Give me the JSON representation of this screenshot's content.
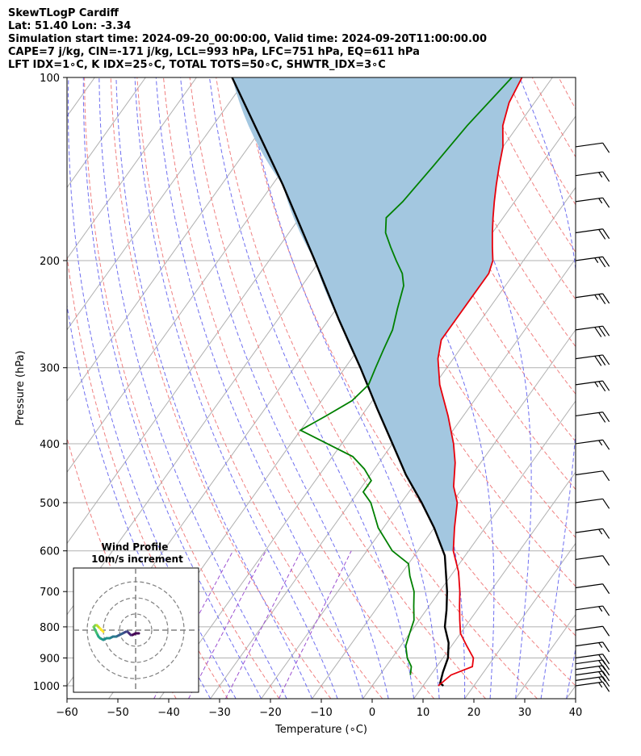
{
  "header": {
    "title": "SkewTLogP Cardiff",
    "location": "Lat: 51.40   Lon: -3.34",
    "times": "Simulation start time: 2024-09-20_00:00:00, Valid time: 2024-09-20T11:00:00.00",
    "params1": "CAPE=7 j/kg, CIN=-171 j/kg, LCL=993 hPa, LFC=751 hPa, EQ=611 hPa",
    "params2": "LFT IDX=1∘C, K IDX=25∘C, TOTAL TOTS=50∘C, SHWTR_IDX=3∘C"
  },
  "colors": {
    "temperature": "#e8000b",
    "dewpoint": "#008000",
    "parcel": "#000000",
    "cape_fill": "#a3c7e0",
    "dry_adiabat": "#f08080",
    "moist_adiabat": "#6f6ff0",
    "mixing_ratio": "#9b4fd0",
    "isotherm": "#b0b0b0",
    "isobar": "#b0b0b0"
  },
  "chart_data": {
    "type": "line",
    "chart_kind": "skew-t log-p",
    "xlabel": "Temperature (∘C)",
    "ylabel": "Pressure (hPa)",
    "xlim": [
      -60,
      40
    ],
    "ylim": [
      1050,
      100
    ],
    "yscale": "log",
    "grid": true,
    "x_ticks": [
      -60,
      -50,
      -40,
      -30,
      -20,
      -10,
      0,
      10,
      20,
      30,
      40
    ],
    "x_tick_labels": [
      "−60",
      "−50",
      "−40",
      "−30",
      "−20",
      "−10",
      "0",
      "10",
      "20",
      "30",
      "40"
    ],
    "y_ticks": [
      1000,
      900,
      800,
      700,
      600,
      500,
      400,
      300,
      200,
      100
    ],
    "series": [
      {
        "key": "temperature",
        "points": [
          [
            1000,
            13
          ],
          [
            960,
            14
          ],
          [
            930,
            17
          ],
          [
            900,
            16
          ],
          [
            860,
            13
          ],
          [
            820,
            10
          ],
          [
            780,
            8
          ],
          [
            740,
            6
          ],
          [
            700,
            4
          ],
          [
            650,
            1
          ],
          [
            600,
            -3
          ],
          [
            550,
            -6
          ],
          [
            500,
            -9
          ],
          [
            470,
            -12
          ],
          [
            430,
            -15
          ],
          [
            400,
            -18
          ],
          [
            360,
            -23
          ],
          [
            320,
            -29
          ],
          [
            290,
            -33
          ],
          [
            270,
            -35
          ],
          [
            250,
            -35
          ],
          [
            230,
            -35
          ],
          [
            210,
            -35
          ],
          [
            200,
            -36
          ],
          [
            190,
            -38
          ],
          [
            180,
            -40
          ],
          [
            170,
            -42
          ],
          [
            160,
            -44
          ],
          [
            150,
            -46
          ],
          [
            140,
            -48
          ],
          [
            130,
            -50
          ],
          [
            120,
            -53
          ],
          [
            110,
            -55
          ],
          [
            100,
            -56
          ]
        ]
      },
      {
        "key": "dewpoint",
        "points": [
          [
            960,
            6
          ],
          [
            930,
            5
          ],
          [
            900,
            3
          ],
          [
            860,
            1
          ],
          [
            820,
            0
          ],
          [
            780,
            -1
          ],
          [
            740,
            -3
          ],
          [
            700,
            -5
          ],
          [
            660,
            -8
          ],
          [
            630,
            -10
          ],
          [
            600,
            -15
          ],
          [
            550,
            -21
          ],
          [
            500,
            -26
          ],
          [
            480,
            -29
          ],
          [
            460,
            -29
          ],
          [
            440,
            -32
          ],
          [
            420,
            -36
          ],
          [
            380,
            -50
          ],
          [
            360,
            -47
          ],
          [
            340,
            -44
          ],
          [
            320,
            -43
          ],
          [
            300,
            -44
          ],
          [
            280,
            -45
          ],
          [
            260,
            -46
          ],
          [
            240,
            -48
          ],
          [
            220,
            -50
          ],
          [
            210,
            -52
          ],
          [
            200,
            -55
          ],
          [
            190,
            -58
          ],
          [
            180,
            -61
          ],
          [
            170,
            -63
          ],
          [
            160,
            -62
          ],
          [
            140,
            -61
          ],
          [
            120,
            -60
          ],
          [
            100,
            -58
          ]
        ]
      },
      {
        "key": "parcel",
        "points": [
          [
            1000,
            14
          ],
          [
            990,
            13
          ],
          [
            950,
            12
          ],
          [
            900,
            11
          ],
          [
            850,
            9
          ],
          [
            800,
            6
          ],
          [
            751,
            4
          ],
          [
            700,
            1.5
          ],
          [
            650,
            -1.5
          ],
          [
            611,
            -4
          ],
          [
            550,
            -10
          ],
          [
            500,
            -16
          ],
          [
            450,
            -23
          ],
          [
            400,
            -30
          ],
          [
            350,
            -38
          ],
          [
            300,
            -47
          ],
          [
            250,
            -58
          ],
          [
            200,
            -71
          ],
          [
            150,
            -88
          ],
          [
            100,
            -113
          ]
        ]
      }
    ],
    "wind_barbs": {
      "levels": [
        1000,
        980,
        960,
        940,
        920,
        900,
        860,
        810,
        750,
        690,
        620,
        560,
        500,
        450,
        400,
        360,
        320,
        290,
        260,
        230,
        200,
        180,
        160,
        145,
        130
      ],
      "speed_kt": [
        15,
        15,
        20,
        20,
        20,
        20,
        15,
        10,
        15,
        10,
        10,
        15,
        10,
        10,
        15,
        20,
        25,
        30,
        30,
        25,
        25,
        20,
        15,
        15,
        10
      ]
    },
    "inset": {
      "title": "Wind Profile",
      "subtitle": "10m/s increment",
      "hodograph_u": [
        2,
        0,
        -2,
        -3,
        -4,
        -5,
        -6,
        -8,
        -10,
        -12,
        -14,
        -16,
        -18,
        -20,
        -22,
        -23,
        -24,
        -25,
        -26,
        -25,
        -24,
        -23,
        -22,
        -21,
        -20
      ],
      "hodograph_v": [
        -2,
        -2,
        -3,
        -3,
        -2,
        -1,
        -1,
        -2,
        -3,
        -4,
        -4,
        -5,
        -5,
        -6,
        -5,
        -4,
        -2,
        0,
        2,
        3,
        3,
        2,
        1,
        0,
        -1
      ]
    }
  }
}
